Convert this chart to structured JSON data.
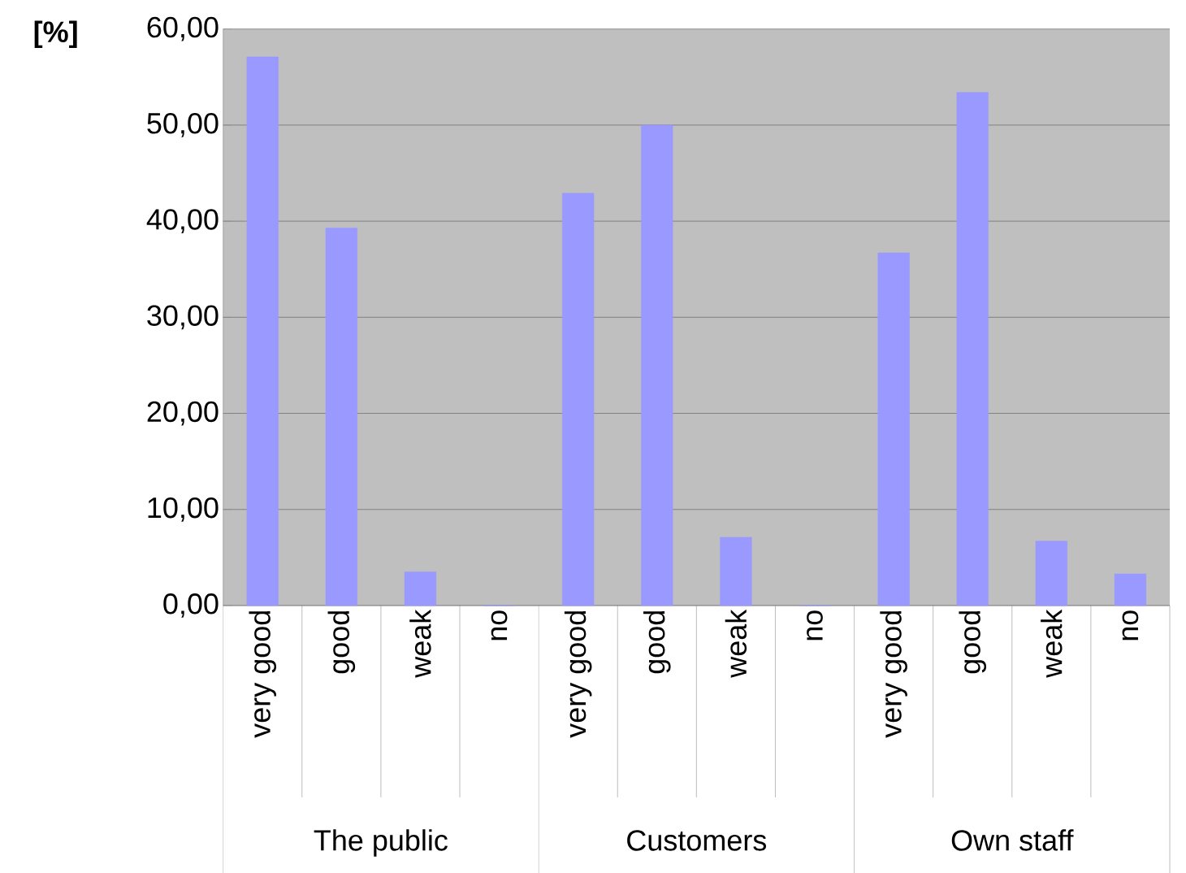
{
  "chart_data": {
    "type": "bar",
    "ylabel": "[%]",
    "categories": [
      "very good",
      "good",
      "weak",
      "no",
      "very good",
      "good",
      "weak",
      "no",
      "very good",
      "good",
      "weak",
      "no"
    ],
    "values": [
      57.1,
      39.3,
      3.5,
      0,
      42.9,
      50.0,
      7.1,
      0,
      36.7,
      53.4,
      6.7,
      3.3
    ],
    "color": "#9999ff",
    "ylim": [
      0,
      60
    ],
    "yticks": [
      {
        "value": 0,
        "label": "0,00"
      },
      {
        "value": 10,
        "label": "10,00"
      },
      {
        "value": 20,
        "label": "20,00"
      },
      {
        "value": 30,
        "label": "30,00"
      },
      {
        "value": 40,
        "label": "40,00"
      },
      {
        "value": 50,
        "label": "50,00"
      },
      {
        "value": 60,
        "label": "60,00"
      }
    ],
    "grid": "y",
    "annotations": [
      "The public",
      "Customers",
      "Own staff"
    ]
  }
}
